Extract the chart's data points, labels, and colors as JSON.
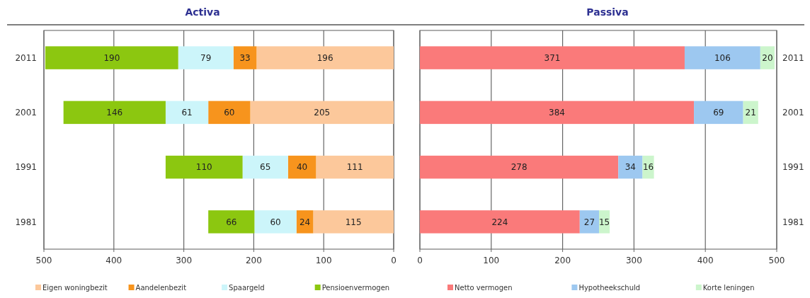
{
  "chart_data": [
    {
      "type": "bar",
      "title": "Activa",
      "orientation": "horizontal",
      "stacked": true,
      "categories": [
        "2011",
        "2001",
        "1991",
        "1981"
      ],
      "xlim": [
        500,
        0
      ],
      "xticks": [
        500,
        400,
        300,
        200,
        100,
        0
      ],
      "grid": "x",
      "legend": "bottom",
      "data_labels": true,
      "series": [
        {
          "name": "Eigen woningbezit",
          "color": "#fcc89b",
          "values": [
            196,
            205,
            111,
            115
          ]
        },
        {
          "name": "Aandelenbezit",
          "color": "#f7941d",
          "values": [
            33,
            60,
            40,
            24
          ]
        },
        {
          "name": "Spaargeld",
          "color": "#ccf5fa",
          "values": [
            79,
            61,
            65,
            60
          ]
        },
        {
          "name": "Pensioenvermogen",
          "color": "#8cc710",
          "values": [
            190,
            146,
            110,
            66
          ]
        }
      ]
    },
    {
      "type": "bar",
      "title": "Passiva",
      "orientation": "horizontal",
      "stacked": true,
      "categories": [
        "2011",
        "2001",
        "1991",
        "1981"
      ],
      "xlim": [
        0,
        500
      ],
      "xticks": [
        0,
        100,
        200,
        300,
        400,
        500
      ],
      "grid": "x",
      "legend": "bottom",
      "data_labels": true,
      "series": [
        {
          "name": "Netto vermogen",
          "color": "#fa7a7a",
          "values": [
            371,
            384,
            278,
            224
          ]
        },
        {
          "name": "Hypotheekschuld",
          "color": "#9dc8f0",
          "values": [
            106,
            69,
            34,
            27
          ]
        },
        {
          "name": "Korte leningen",
          "color": "#ccf5cc",
          "values": [
            20,
            21,
            16,
            15
          ]
        }
      ]
    }
  ]
}
